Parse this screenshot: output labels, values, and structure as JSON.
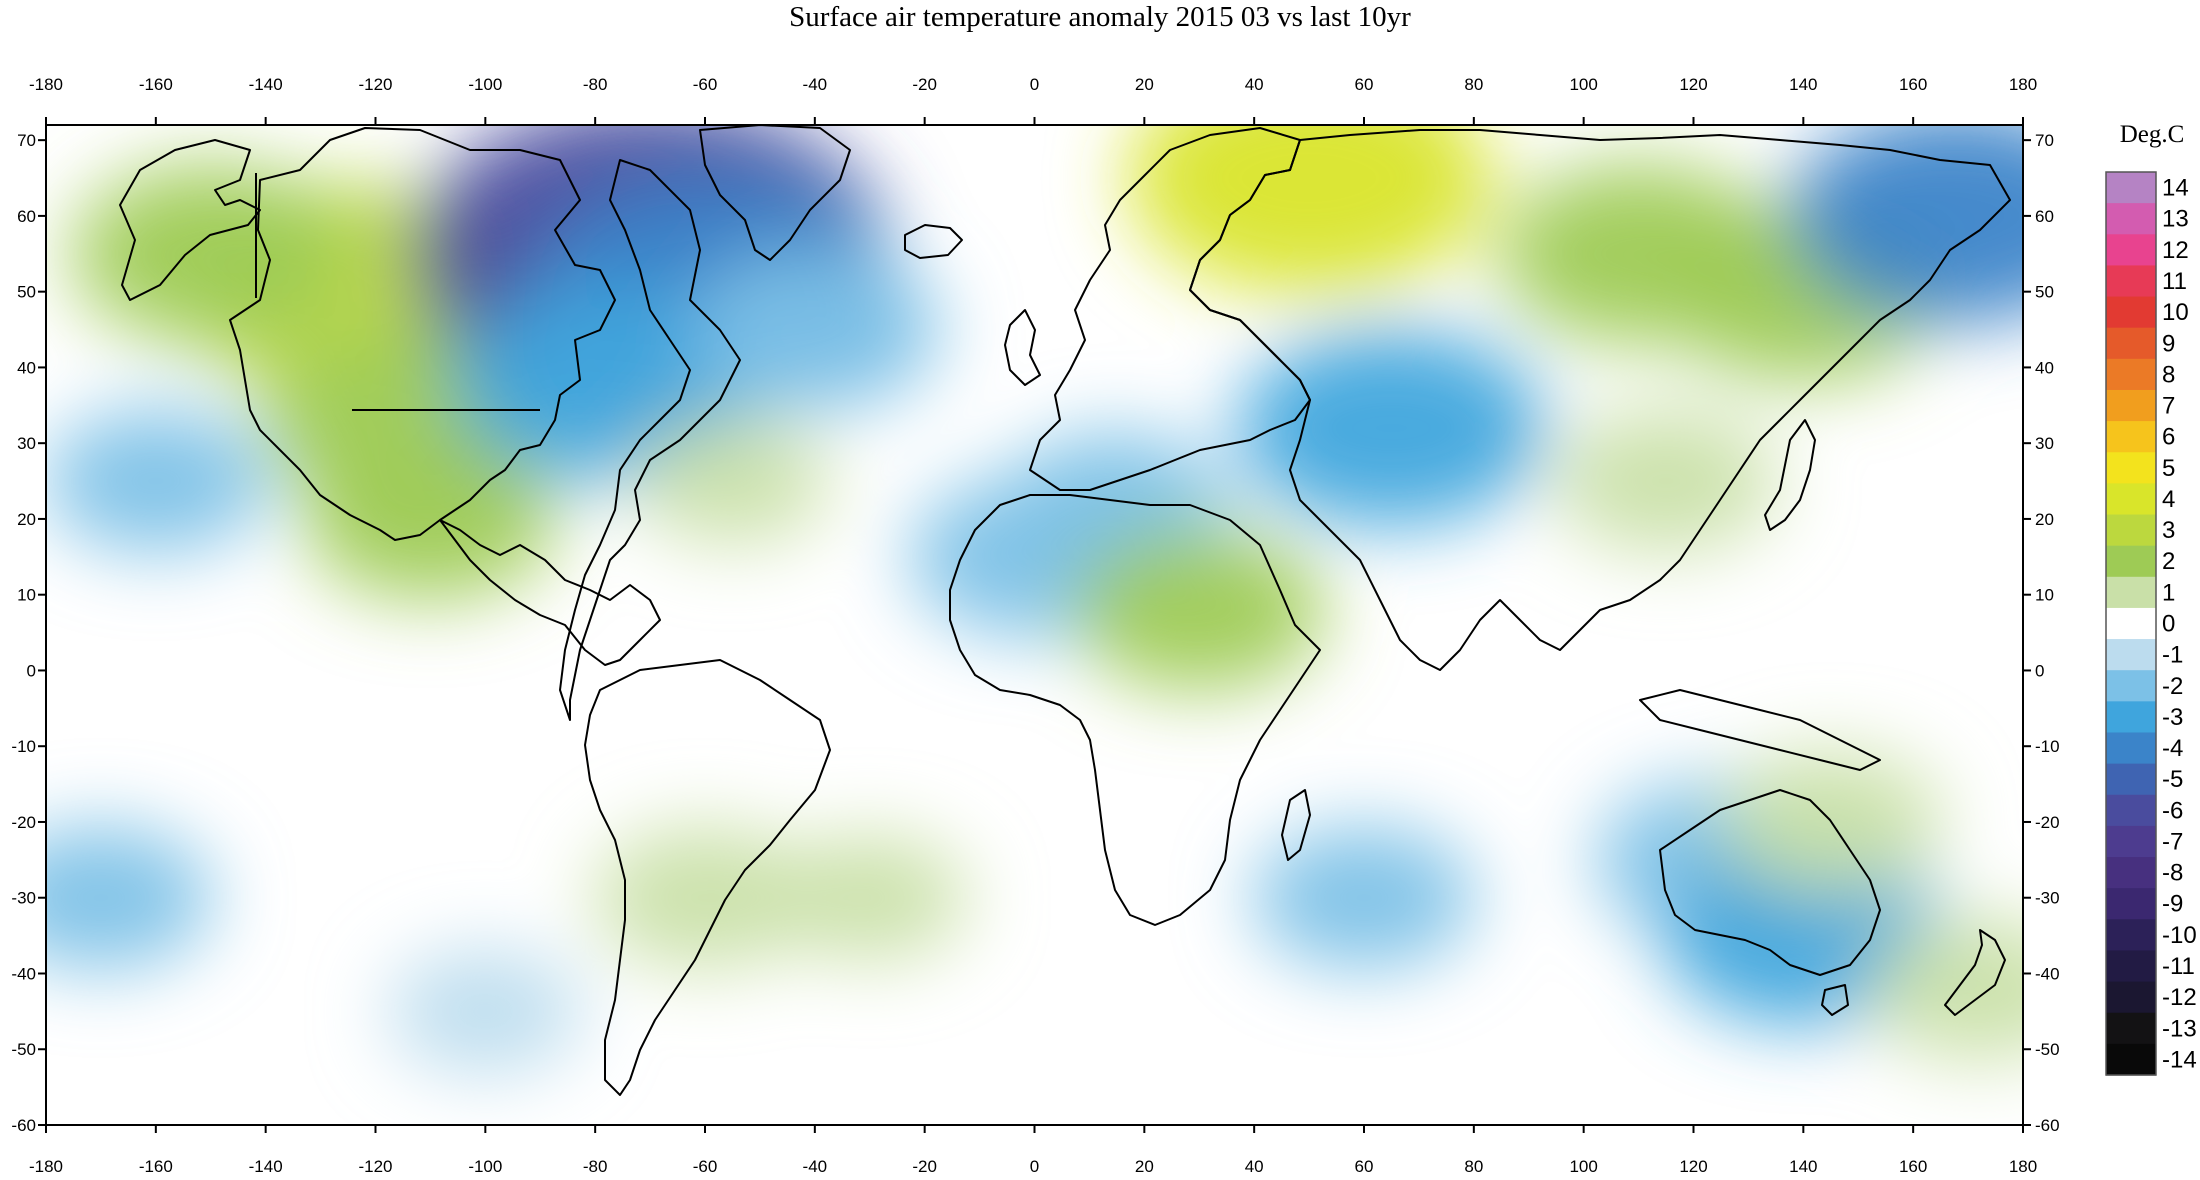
{
  "title": "Surface air temperature anomaly 2015 03 vs last 10yr",
  "axes": {
    "lon_ticks": [
      "-180",
      "-160",
      "-140",
      "-120",
      "-100",
      "-80",
      "-60",
      "-40",
      "-20",
      "0",
      "20",
      "40",
      "60",
      "80",
      "100",
      "120",
      "140",
      "160",
      "180"
    ],
    "lat_ticks": [
      "70",
      "60",
      "50",
      "40",
      "30",
      "20",
      "10",
      "0",
      "-10",
      "-20",
      "-30",
      "-40",
      "-50",
      "-60"
    ],
    "lon_range": [
      -180,
      180
    ],
    "lat_range": [
      -60,
      72
    ]
  },
  "colorbar": {
    "unit": "Deg.C",
    "labels": [
      "14",
      "13",
      "12",
      "11",
      "10",
      "9",
      "8",
      "7",
      "6",
      "5",
      "4",
      "3",
      "2",
      "1",
      "0",
      "-1",
      "-2",
      "-3",
      "-4",
      "-5",
      "-6",
      "-7",
      "-8",
      "-9",
      "-10",
      "-11",
      "-12",
      "-13",
      "-14"
    ],
    "colors": [
      "#b583c4",
      "#d35cb0",
      "#e8438f",
      "#e73a56",
      "#e23a32",
      "#e55a2a",
      "#eb7a26",
      "#f19e1e",
      "#f6c41c",
      "#f3e31d",
      "#d9e52a",
      "#bcd83e",
      "#9ecb55",
      "#c9e0a8",
      "#ffffff",
      "#bcdcee",
      "#7cc1e7",
      "#3fa5dd",
      "#3b84c9",
      "#3f64b2",
      "#4a4c9e",
      "#4d3c8f",
      "#47307f",
      "#3b2870",
      "#2c2158",
      "#221b44",
      "#1b1731",
      "#131214",
      "#090909"
    ]
  },
  "anomalies": [
    {
      "name": "canada-warm",
      "lon": -125,
      "lat": 50,
      "value": 3.5
    },
    {
      "name": "alaska-warm",
      "lon": -150,
      "lat": 55,
      "value": 2.5
    },
    {
      "name": "us-west-warm",
      "lon": -115,
      "lat": 33,
      "value": 2.5
    },
    {
      "name": "mexico-warm",
      "lon": -110,
      "lat": 20,
      "value": 2
    },
    {
      "name": "eastern-canada-cold",
      "lon": -70,
      "lat": 55,
      "value": -6
    },
    {
      "name": "labrador-cold",
      "lon": -58,
      "lat": 50,
      "value": -4
    },
    {
      "name": "us-east-cold",
      "lon": -78,
      "lat": 38,
      "value": -3
    },
    {
      "name": "north-atlantic-cold",
      "lon": -40,
      "lat": 45,
      "value": -2
    },
    {
      "name": "pacific-east-cold",
      "lon": -160,
      "lat": 25,
      "value": -1.5
    },
    {
      "name": "russia-warm",
      "lon": 50,
      "lat": 65,
      "value": 4
    },
    {
      "name": "siberia-warm",
      "lon": 110,
      "lat": 55,
      "value": 2.5
    },
    {
      "name": "east-siberia-warm",
      "lon": 140,
      "lat": 50,
      "value": 2.5
    },
    {
      "name": "bering-cold",
      "lon": 168,
      "lat": 60,
      "value": -3.5
    },
    {
      "name": "central-asia-cold",
      "lon": 65,
      "lat": 32,
      "value": -3
    },
    {
      "name": "north-africa-cold",
      "lon": 0,
      "lat": 15,
      "value": -2
    },
    {
      "name": "sahara-cold",
      "lon": 15,
      "lat": 22,
      "value": -1.5
    },
    {
      "name": "east-africa-warm",
      "lon": 30,
      "lat": 8,
      "value": 2
    },
    {
      "name": "china-warm",
      "lon": 115,
      "lat": 25,
      "value": 1.5
    },
    {
      "name": "australia-cold",
      "lon": 125,
      "lat": -25,
      "value": -2
    },
    {
      "name": "se-australia-cold",
      "lon": 140,
      "lat": -35,
      "value": -2.5
    },
    {
      "name": "ne-australia-warm",
      "lon": 145,
      "lat": -20,
      "value": 1.5
    },
    {
      "name": "south-pacific-cold",
      "lon": -170,
      "lat": -30,
      "value": -1.5
    },
    {
      "name": "south-america-warm",
      "lon": -60,
      "lat": -30,
      "value": 1.5
    },
    {
      "name": "south-atlantic-warm",
      "lon": -30,
      "lat": -30,
      "value": 1
    },
    {
      "name": "south-indian-cold",
      "lon": 60,
      "lat": -30,
      "value": -1.5
    },
    {
      "name": "new-zealand-warm",
      "lon": 172,
      "lat": -42,
      "value": 1.5
    },
    {
      "name": "tropical-atlantic-warm",
      "lon": -55,
      "lat": 25,
      "value": 1
    },
    {
      "name": "south-ocean-cold",
      "lon": -100,
      "lat": -45,
      "value": -1
    }
  ]
}
